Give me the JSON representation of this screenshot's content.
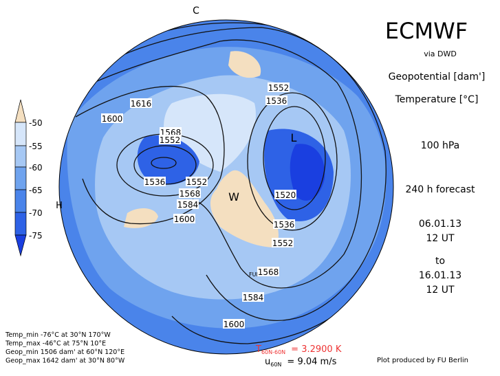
{
  "header": {
    "title": "ECMWF",
    "source": "via DWD",
    "field_1": "Geopotential [dam']",
    "field_2": "Temperature [°C]",
    "level": "100 hPa",
    "forecast": "240 h forecast",
    "init_date": "06.01.13",
    "init_time": "12 UT",
    "to": "to",
    "valid_date": "16.01.13",
    "valid_time": "12 UT"
  },
  "legend": {
    "ticks": [
      -50,
      -55,
      -60,
      -65,
      -70,
      -75
    ]
  },
  "map": {
    "markers": [
      "C",
      "L",
      "W",
      "H"
    ],
    "station": "FUB",
    "contour_labels": [
      1616,
      1600,
      1568,
      1552,
      1536,
      1552,
      1568,
      1584,
      1600,
      1552,
      1536,
      1520,
      1536,
      1552,
      1568,
      1584,
      1600
    ]
  },
  "stats": [
    "Temp_min -76°C at 30°N 170°W",
    "Temp_max -46°C at 75°N 10°E",
    "Geop_min 1506 dam' at 60°N 120°E",
    "Geop_max 1642 dam' at 30°N 80°W"
  ],
  "footer": {
    "t_symbol": "T",
    "t_subscript": "60N-60N",
    "t_value": "= 3.2900 K",
    "u_symbol": "u",
    "u_subscript": "60N",
    "u_value": "= 9.04 m/s",
    "credit": "Plot produced by FU Berlin"
  }
}
